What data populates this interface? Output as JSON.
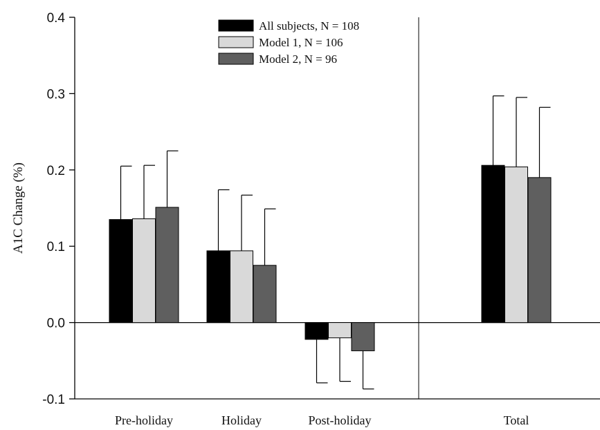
{
  "chart_data": {
    "type": "bar",
    "title": "",
    "xlabel": "",
    "ylabel": "A1C Change (%)",
    "ylim": [
      -0.1,
      0.4
    ],
    "yticks": [
      -0.1,
      0.0,
      0.1,
      0.2,
      0.3,
      0.4
    ],
    "ytick_labels": [
      "-0.1",
      "0.0",
      "0.1",
      "0.2",
      "0.3",
      "0.4"
    ],
    "categories": [
      "Pre-holiday",
      "Holiday",
      "Post-holiday",
      "Total"
    ],
    "grid": false,
    "legend_position": "top-center",
    "series": [
      {
        "name": "All subjects, N = 108",
        "color": "#000000",
        "values": [
          0.135,
          0.094,
          -0.022,
          0.206
        ],
        "error_upper": [
          0.205,
          0.174,
          -0.079,
          0.297
        ]
      },
      {
        "name": "Model 1,  N = 106",
        "color": "#d9d9d9",
        "values": [
          0.136,
          0.094,
          -0.02,
          0.204
        ],
        "error_upper": [
          0.206,
          0.167,
          -0.077,
          0.295
        ]
      },
      {
        "name": "Model 2,  N = 96",
        "color": "#5f5f5f",
        "values": [
          0.151,
          0.075,
          -0.037,
          0.19
        ],
        "error_upper": [
          0.225,
          0.149,
          -0.087,
          0.282
        ]
      }
    ]
  }
}
